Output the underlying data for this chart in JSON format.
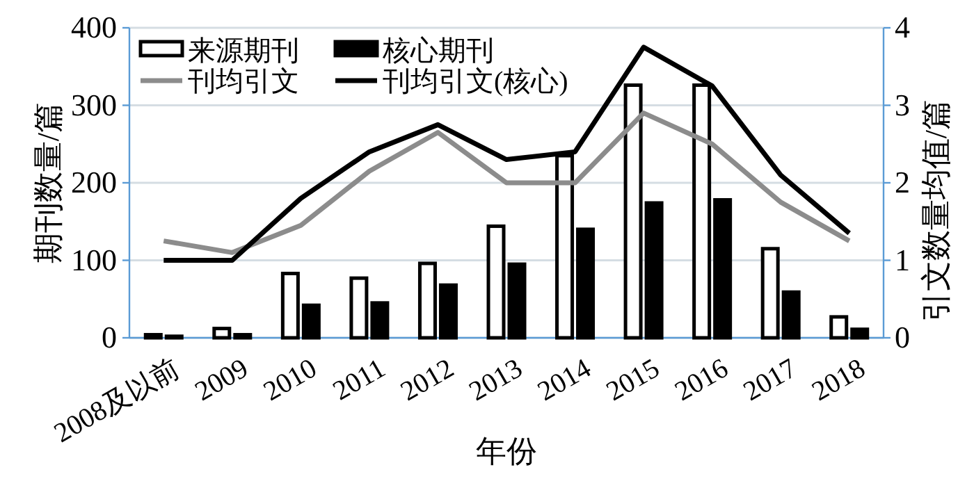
{
  "chart_data": {
    "type": "bar",
    "xlabel": "年份",
    "ylabel": "期刊数量/篇",
    "y2label": "引文数量均值/篇",
    "categories": [
      "2008及以前",
      "2009",
      "2010",
      "2011",
      "2012",
      "2013",
      "2014",
      "2015",
      "2016",
      "2017",
      "2018"
    ],
    "series": [
      {
        "name": "来源期刊",
        "color": "#ffffff",
        "values": [
          4,
          12,
          83,
          77,
          96,
          144,
          235,
          326,
          326,
          115,
          27
        ]
      },
      {
        "name": "核心期刊",
        "color": "#000000",
        "values": [
          2,
          4,
          42,
          45,
          68,
          95,
          140,
          174,
          178,
          59,
          11
        ]
      },
      {
        "name": "刊均引文",
        "type": "line",
        "axis": "y2",
        "color": "#8c8c8c",
        "values": [
          1.25,
          1.1,
          1.45,
          2.15,
          2.65,
          2.0,
          2.0,
          2.9,
          2.5,
          1.75,
          1.25
        ]
      },
      {
        "name": "刊均引文(核心)",
        "type": "line",
        "axis": "y2",
        "color": "#000000",
        "values": [
          1.0,
          1.0,
          1.8,
          2.4,
          2.75,
          2.3,
          2.4,
          3.75,
          3.25,
          2.1,
          1.35
        ]
      }
    ],
    "ylim": [
      0,
      400
    ],
    "yticks": [
      0,
      100,
      200,
      300,
      400
    ],
    "y2lim": [
      0,
      4
    ],
    "y2ticks": [
      0,
      1,
      2,
      3,
      4
    ],
    "grid": "y",
    "legend": "top left",
    "marker": "none",
    "line_style": "solid"
  }
}
